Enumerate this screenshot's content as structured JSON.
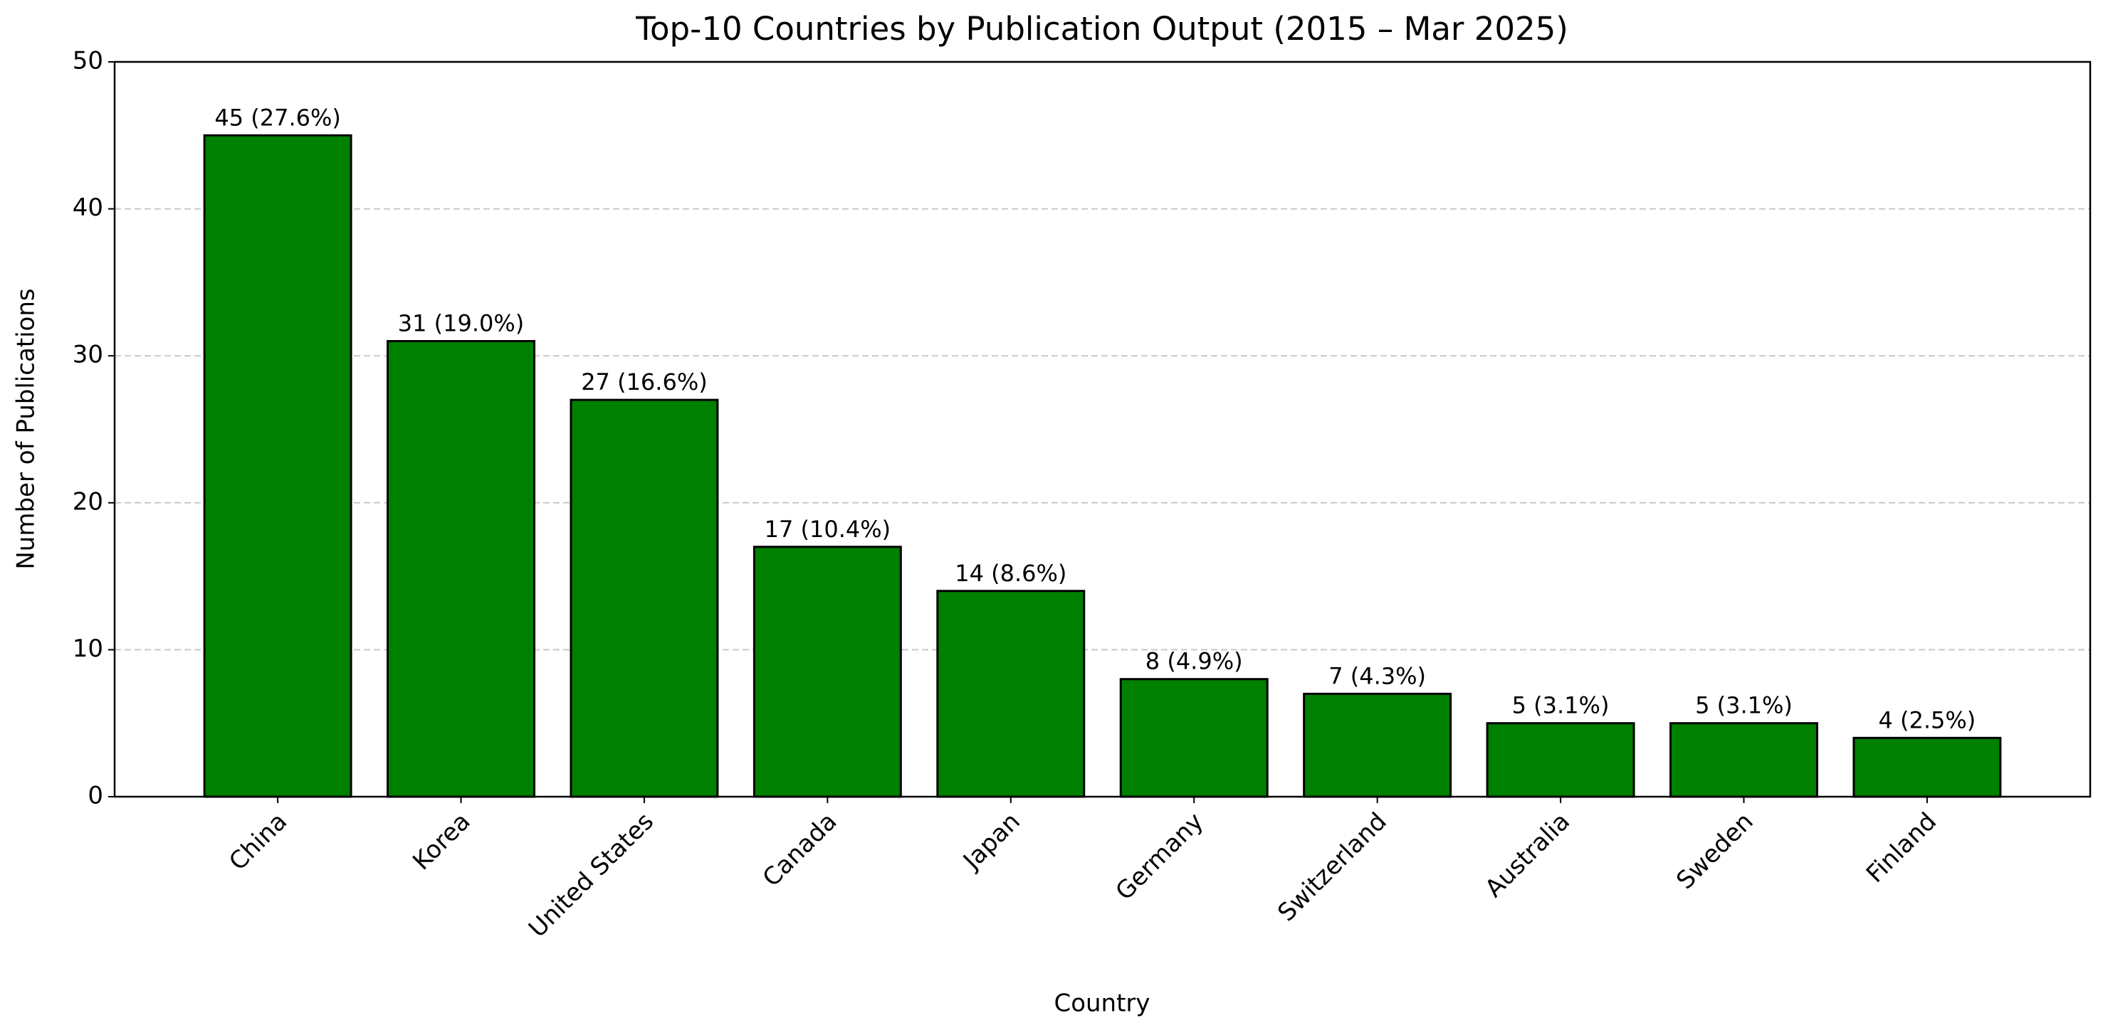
{
  "chart_data": {
    "type": "bar",
    "title": "Top-10 Countries by Publication Output (2015 – Mar 2025)",
    "x_label": "Country",
    "y_label": "Number of Publications",
    "categories": [
      "China",
      "Korea",
      "United States",
      "Canada",
      "Japan",
      "Germany",
      "Switzerland",
      "Australia",
      "Sweden",
      "Finland"
    ],
    "values": [
      45,
      31,
      27,
      17,
      14,
      8,
      7,
      5,
      5,
      4
    ],
    "value_labels": [
      "45 (27.6%)",
      "31 (19.0%)",
      "27 (16.6%)",
      "17 (10.4%)",
      "14 (8.6%)",
      "8 (4.9%)",
      "7 (4.3%)",
      "5 (3.1%)",
      "5 (3.1%)",
      "4 (2.5%)"
    ],
    "color": "#008000",
    "ylim": [
      0,
      50
    ],
    "yticks": [
      0,
      10,
      20,
      30,
      40,
      50
    ],
    "grid": true
  }
}
